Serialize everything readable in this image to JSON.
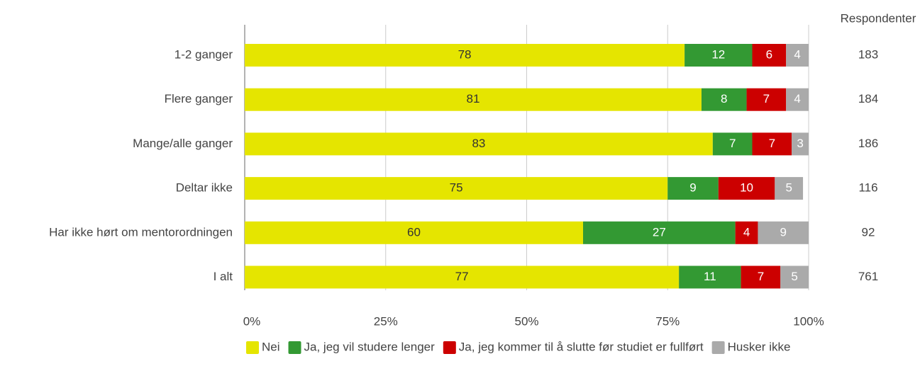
{
  "chart_data": {
    "type": "stacked-bar-horizontal",
    "categories": [
      "1-2 ganger",
      "Flere ganger",
      "Mange/alle ganger",
      "Deltar ikke",
      "Har ikke hørt om mentorordningen",
      "I alt"
    ],
    "series": [
      {
        "name": "Nei",
        "color": "#e5e500",
        "values": [
          78,
          81,
          83,
          75,
          60,
          77
        ]
      },
      {
        "name": "Ja, jeg vil studere lenger",
        "color": "#339933",
        "values": [
          12,
          8,
          7,
          9,
          27,
          11
        ]
      },
      {
        "name": "Ja, jeg kommer til å slutte før studiet er fullført",
        "color": "#cc0000",
        "values": [
          6,
          7,
          7,
          10,
          4,
          7
        ]
      },
      {
        "name": "Husker ikke",
        "color": "#aaaaaa",
        "values": [
          4,
          4,
          3,
          5,
          9,
          5
        ]
      }
    ],
    "xlim": [
      0,
      100
    ],
    "xticks": [
      {
        "value": 0,
        "label": "0%"
      },
      {
        "value": 25,
        "label": "25%"
      },
      {
        "value": 50,
        "label": "50%"
      },
      {
        "value": 75,
        "label": "75%"
      },
      {
        "value": 100,
        "label": "100%"
      }
    ],
    "grid": true,
    "legend": "bottom",
    "respondents": {
      "title": "Respondenter",
      "values": [
        183,
        184,
        186,
        116,
        92,
        761
      ]
    }
  }
}
